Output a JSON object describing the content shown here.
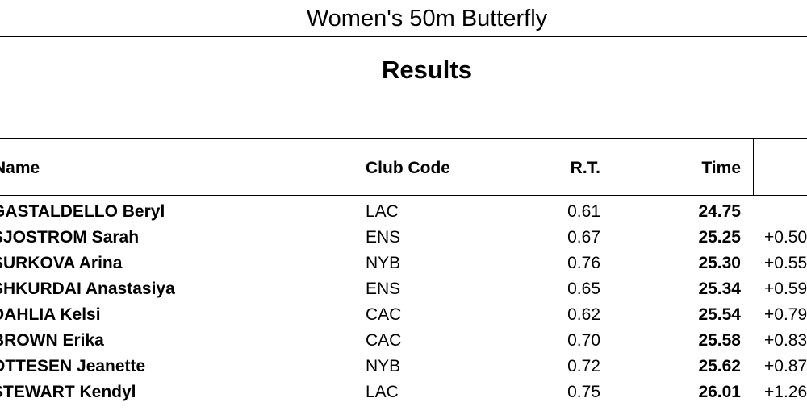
{
  "event_title": "Women's 50m Butterfly",
  "section_title": "Results",
  "headers": {
    "name": "Name",
    "club": "Club Code",
    "rt": "R.T.",
    "time": "Time"
  },
  "rows": [
    {
      "name": "GASTALDELLO Beryl",
      "club": "LAC",
      "rt": "0.61",
      "time": "24.75",
      "diff": ""
    },
    {
      "name": "SJOSTROM Sarah",
      "club": "ENS",
      "rt": "0.67",
      "time": "25.25",
      "diff": "+0.50"
    },
    {
      "name": "SURKOVA Arina",
      "club": "NYB",
      "rt": "0.76",
      "time": "25.30",
      "diff": "+0.55"
    },
    {
      "name": "SHKURDAI Anastasiya",
      "club": "ENS",
      "rt": "0.65",
      "time": "25.34",
      "diff": "+0.59"
    },
    {
      "name": "DAHLIA Kelsi",
      "club": "CAC",
      "rt": "0.62",
      "time": "25.54",
      "diff": "+0.79"
    },
    {
      "name": "BROWN Erika",
      "club": "CAC",
      "rt": "0.70",
      "time": "25.58",
      "diff": "+0.83"
    },
    {
      "name": "OTTESEN Jeanette",
      "club": "NYB",
      "rt": "0.72",
      "time": "25.62",
      "diff": "+0.87"
    },
    {
      "name": "STEWART Kendyl",
      "club": "LAC",
      "rt": "0.75",
      "time": "26.01",
      "diff": "+1.26"
    }
  ]
}
